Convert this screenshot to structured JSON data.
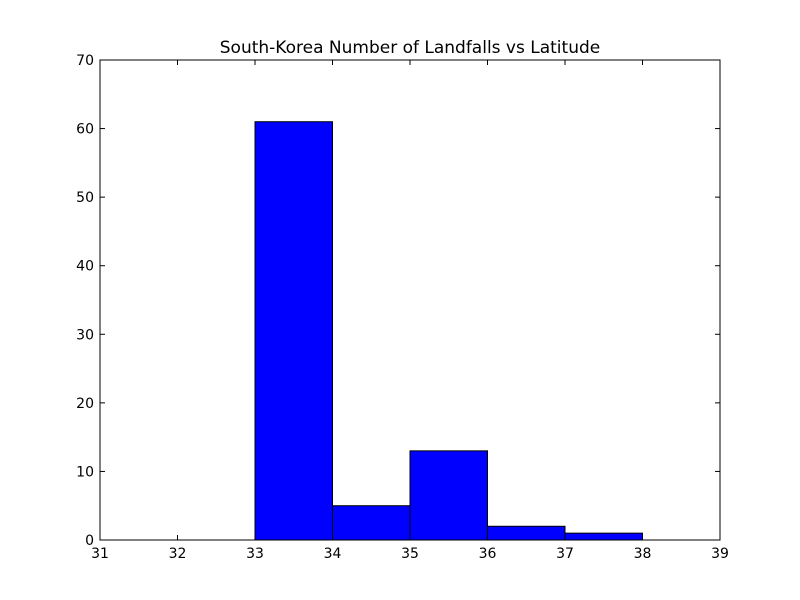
{
  "chart_data": {
    "type": "bar",
    "title": "South-Korea Number of Landfalls vs Latitude",
    "xlabel": "",
    "ylabel": "",
    "bins": [
      {
        "start": 31,
        "end": 32,
        "value": 0
      },
      {
        "start": 32,
        "end": 33,
        "value": 0
      },
      {
        "start": 33,
        "end": 34,
        "value": 61
      },
      {
        "start": 34,
        "end": 35,
        "value": 5
      },
      {
        "start": 35,
        "end": 36,
        "value": 13
      },
      {
        "start": 36,
        "end": 37,
        "value": 2
      },
      {
        "start": 37,
        "end": 38,
        "value": 1
      }
    ],
    "xlim": [
      31,
      39
    ],
    "ylim": [
      0,
      70
    ],
    "xticks": [
      "31",
      "32",
      "33",
      "34",
      "35",
      "36",
      "37",
      "38",
      "39"
    ],
    "yticks": [
      "0",
      "10",
      "20",
      "30",
      "40",
      "50",
      "60",
      "70"
    ],
    "grid": false,
    "bar_color": "#0000ff",
    "edge_color": "#000000"
  }
}
